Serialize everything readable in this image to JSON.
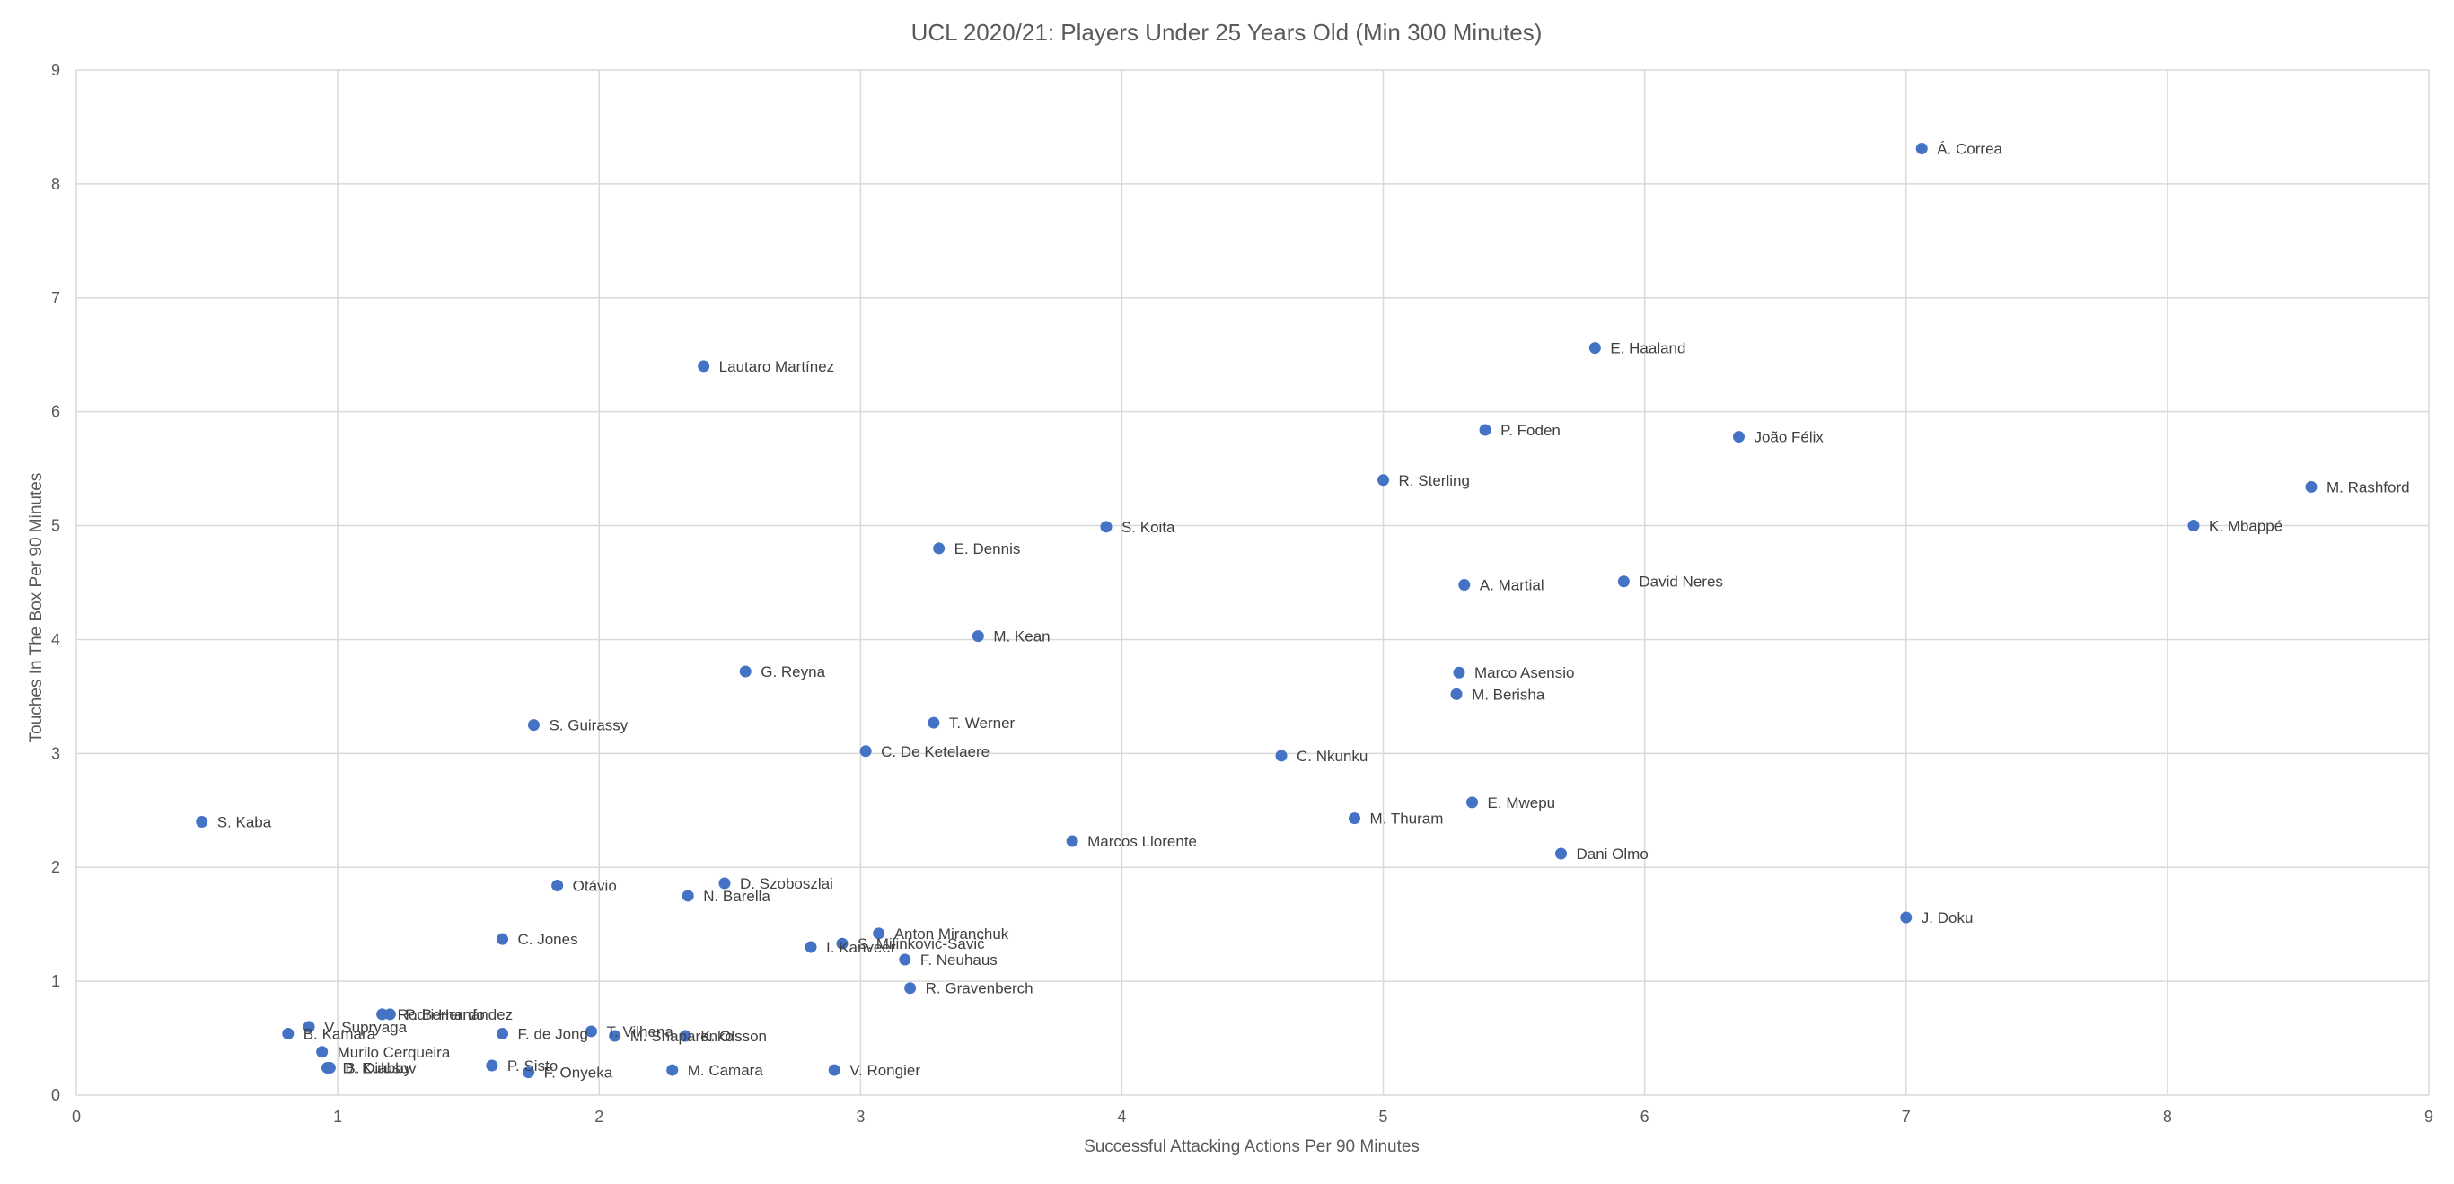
{
  "chart_data": {
    "type": "scatter",
    "title": "UCL 2020/21: Players Under 25 Years Old (Min 300 Minutes)",
    "xlabel": "Successful Attacking Actions Per 90 Minutes",
    "ylabel": "Touches In The Box Per 90 Minutes",
    "xlim": [
      0,
      9
    ],
    "ylim": [
      0,
      9
    ],
    "xticks": [
      "0",
      "1",
      "2",
      "3",
      "4",
      "5",
      "6",
      "7",
      "8",
      "9"
    ],
    "yticks": [
      "0",
      "1",
      "2",
      "3",
      "4",
      "5",
      "6",
      "7",
      "8",
      "9"
    ],
    "grid": true,
    "legend": "none",
    "marker_color": "#4472c4",
    "points": [
      {
        "label": "Á. Correa",
        "x": 7.06,
        "y": 8.31
      },
      {
        "label": "E. Haaland",
        "x": 5.81,
        "y": 6.56
      },
      {
        "label": "Lautaro Martínez",
        "x": 2.4,
        "y": 6.4
      },
      {
        "label": "P. Foden",
        "x": 5.39,
        "y": 5.84
      },
      {
        "label": "João Félix",
        "x": 6.36,
        "y": 5.78
      },
      {
        "label": "R. Sterling",
        "x": 5.0,
        "y": 5.4
      },
      {
        "label": "M. Rashford",
        "x": 8.55,
        "y": 5.34
      },
      {
        "label": "S. Koita",
        "x": 3.94,
        "y": 4.99
      },
      {
        "label": "K. Mbappé",
        "x": 8.1,
        "y": 5.0
      },
      {
        "label": "E. Dennis",
        "x": 3.3,
        "y": 4.8
      },
      {
        "label": "A. Martial",
        "x": 5.31,
        "y": 4.48
      },
      {
        "label": "David Neres",
        "x": 5.92,
        "y": 4.51
      },
      {
        "label": "M. Kean",
        "x": 3.45,
        "y": 4.03
      },
      {
        "label": "G. Reyna",
        "x": 2.56,
        "y": 3.72
      },
      {
        "label": "Marco Asensio",
        "x": 5.29,
        "y": 3.71
      },
      {
        "label": "M. Berisha",
        "x": 5.28,
        "y": 3.52
      },
      {
        "label": "S. Guirassy",
        "x": 1.75,
        "y": 3.25
      },
      {
        "label": "T. Werner",
        "x": 3.28,
        "y": 3.27
      },
      {
        "label": "C. De Ketelaere",
        "x": 3.02,
        "y": 3.02
      },
      {
        "label": "C. Nkunku",
        "x": 4.61,
        "y": 2.98
      },
      {
        "label": "E. Mwepu",
        "x": 5.34,
        "y": 2.57
      },
      {
        "label": "M. Thuram",
        "x": 4.89,
        "y": 2.43
      },
      {
        "label": "S. Kaba",
        "x": 0.48,
        "y": 2.4
      },
      {
        "label": "Marcos Llorente",
        "x": 3.81,
        "y": 2.23
      },
      {
        "label": "Dani Olmo",
        "x": 5.68,
        "y": 2.12
      },
      {
        "label": "D. Szoboszlai",
        "x": 2.48,
        "y": 1.86
      },
      {
        "label": "Otávio",
        "x": 1.84,
        "y": 1.84
      },
      {
        "label": "N. Barella",
        "x": 2.34,
        "y": 1.75
      },
      {
        "label": "J. Doku",
        "x": 7.0,
        "y": 1.56
      },
      {
        "label": "Anton Miranchuk",
        "x": 3.07,
        "y": 1.42
      },
      {
        "label": "C. Jones",
        "x": 1.63,
        "y": 1.37
      },
      {
        "label": "S. Milinković-Savić",
        "x": 2.93,
        "y": 1.33
      },
      {
        "label": "I. Kanveer",
        "x": 2.81,
        "y": 1.3
      },
      {
        "label": "F. Neuhaus",
        "x": 3.17,
        "y": 1.19
      },
      {
        "label": "R. Gravenberch",
        "x": 3.19,
        "y": 0.94
      },
      {
        "label": "Rodri Hernández",
        "x": 1.17,
        "y": 0.71
      },
      {
        "label": "P. Bernardo",
        "x": 1.2,
        "y": 0.71
      },
      {
        "label": "V. Supryaga",
        "x": 0.89,
        "y": 0.6
      },
      {
        "label": "B. Kamara",
        "x": 0.81,
        "y": 0.54
      },
      {
        "label": "F. de Jong",
        "x": 1.63,
        "y": 0.54
      },
      {
        "label": "T. Vilhena",
        "x": 1.97,
        "y": 0.56
      },
      {
        "label": "M. Shaparenko",
        "x": 2.06,
        "y": 0.52
      },
      {
        "label": "K. Olsson",
        "x": 2.33,
        "y": 0.52
      },
      {
        "label": "Murilo Cerqueira",
        "x": 0.94,
        "y": 0.38
      },
      {
        "label": "P. Sisto",
        "x": 1.59,
        "y": 0.26
      },
      {
        "label": "D. Kulusov",
        "x": 0.96,
        "y": 0.24
      },
      {
        "label": "B. Diabby",
        "x": 0.97,
        "y": 0.24
      },
      {
        "label": "F. Onyeka",
        "x": 1.73,
        "y": 0.2
      },
      {
        "label": "M. Camara",
        "x": 2.28,
        "y": 0.22
      },
      {
        "label": "V. Rongier",
        "x": 2.9,
        "y": 0.22
      }
    ]
  }
}
